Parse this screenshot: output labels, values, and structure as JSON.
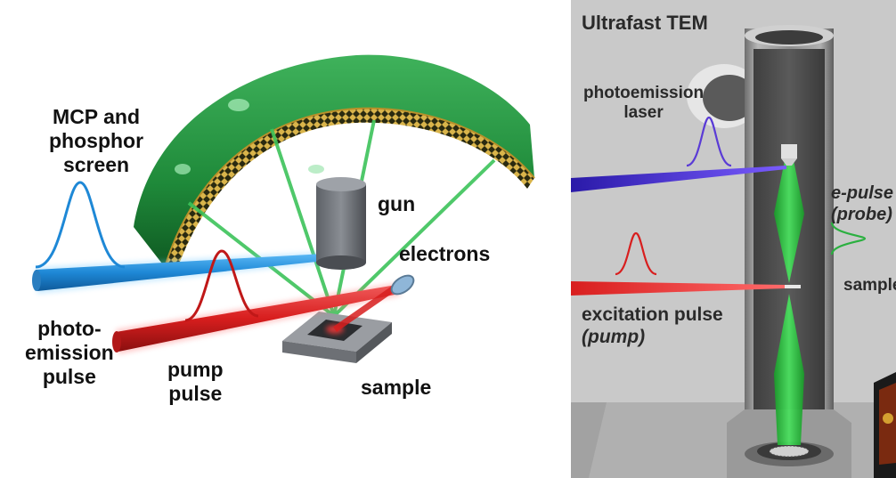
{
  "left": {
    "mcp_label": [
      "MCP and",
      "phosphor",
      "screen"
    ],
    "gun_label": "gun",
    "electrons_label": "electrons",
    "photoemission_label": [
      "photo-",
      "emission",
      "pulse"
    ],
    "pump_label": [
      "pump",
      "pulse"
    ],
    "sample_label": "sample"
  },
  "right": {
    "title": "Ultrafast TEM",
    "laser_label": [
      "photoemission",
      "laser"
    ],
    "epulse_label": [
      "e-pulse",
      "(probe)"
    ],
    "sample_label": "sample",
    "excitation_label": [
      "excitation pulse",
      "(pump)"
    ]
  },
  "colors": {
    "dome_green": "#1f8a3a",
    "mesh_gold": "#c8a13a",
    "photoemission_blue": "#1e88d6",
    "pump_red": "#d81e1e",
    "electron_green": "#3cc35a",
    "laser_violet": "#5a3bd6",
    "tem_background": "#c9c9c9"
  }
}
